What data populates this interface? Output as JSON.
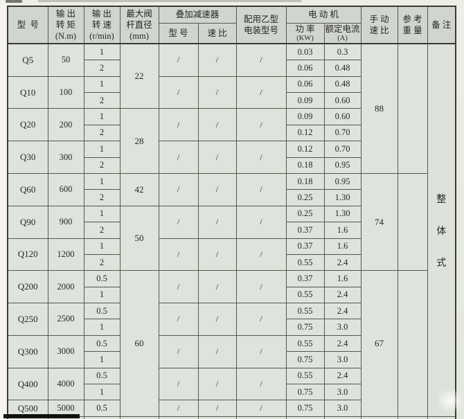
{
  "table": {
    "header": {
      "model": "型  号",
      "torque": "输 出\n转 矩\n(N.m)",
      "speed": "输 出\n转 速\n(r/min)",
      "stem_diameter": "最大阀\n杆直径\n(mm)",
      "reducer_group": "叠加减速器",
      "reducer_model": "型 号",
      "reducer_ratio": "速 比",
      "device": "配用乙型\n电装型号",
      "motor_group": "电 动 机",
      "motor_power_label": "功 率",
      "motor_power_unit": "(KW)",
      "motor_current_label": "额定电流",
      "motor_current_unit": "(A)",
      "hand_ratio": "手 动\n速 比",
      "weight": "参 考\n重 量",
      "remark": "备 注"
    },
    "models": [
      {
        "model": "Q5",
        "torque": "50",
        "reducer_model": "/",
        "reducer_ratio": "/",
        "device": "/",
        "subs": [
          {
            "speed": "1",
            "power": "0.03",
            "current": "0.3"
          },
          {
            "speed": "2",
            "power": "0.06",
            "current": "0.48"
          }
        ]
      },
      {
        "model": "Q10",
        "torque": "100",
        "reducer_model": "/",
        "reducer_ratio": "/",
        "device": "/",
        "subs": [
          {
            "speed": "1",
            "power": "0.06",
            "current": "0.48"
          },
          {
            "speed": "2",
            "power": "0.09",
            "current": "0.60"
          }
        ]
      },
      {
        "model": "Q20",
        "torque": "200",
        "reducer_model": "/",
        "reducer_ratio": "/",
        "device": "/",
        "subs": [
          {
            "speed": "1",
            "power": "0.09",
            "current": "0.60"
          },
          {
            "speed": "2",
            "power": "0.12",
            "current": "0.70"
          }
        ]
      },
      {
        "model": "Q30",
        "torque": "300",
        "reducer_model": "/",
        "reducer_ratio": "/",
        "device": "/",
        "subs": [
          {
            "speed": "1",
            "power": "0.12",
            "current": "0.70"
          },
          {
            "speed": "2",
            "power": "0.18",
            "current": "0.95"
          }
        ]
      },
      {
        "model": "Q60",
        "torque": "600",
        "reducer_model": "/",
        "reducer_ratio": "/",
        "device": "/",
        "subs": [
          {
            "speed": "1",
            "power": "0.18",
            "current": "0.95"
          },
          {
            "speed": "2",
            "power": "0.25",
            "current": "1.30"
          }
        ]
      },
      {
        "model": "Q90",
        "torque": "900",
        "reducer_model": "/",
        "reducer_ratio": "/",
        "device": "/",
        "subs": [
          {
            "speed": "1",
            "power": "0.25",
            "current": "1.30"
          },
          {
            "speed": "2",
            "power": "0.37",
            "current": "1.6"
          }
        ]
      },
      {
        "model": "Q120",
        "torque": "1200",
        "reducer_model": "/",
        "reducer_ratio": "/",
        "device": "/",
        "subs": [
          {
            "speed": "1",
            "power": "0.37",
            "current": "1.6"
          },
          {
            "speed": "2",
            "power": "0.55",
            "current": "2.4"
          }
        ]
      },
      {
        "model": "Q200",
        "torque": "2000",
        "reducer_model": "/",
        "reducer_ratio": "/",
        "device": "/",
        "subs": [
          {
            "speed": "0.5",
            "power": "0.37",
            "current": "1.6"
          },
          {
            "speed": "1",
            "power": "0.55",
            "current": "2.4"
          }
        ]
      },
      {
        "model": "Q250",
        "torque": "2500",
        "reducer_model": "/",
        "reducer_ratio": "/",
        "device": "/",
        "subs": [
          {
            "speed": "0.5",
            "power": "0.55",
            "current": "2.4"
          },
          {
            "speed": "1",
            "power": "0.75",
            "current": "3.0"
          }
        ]
      },
      {
        "model": "Q300",
        "torque": "3000",
        "reducer_model": "/",
        "reducer_ratio": "/",
        "device": "/",
        "subs": [
          {
            "speed": "0.5",
            "power": "0.55",
            "current": "2.4"
          },
          {
            "speed": "1",
            "power": "0.75",
            "current": "3.0"
          }
        ]
      },
      {
        "model": "Q400",
        "torque": "4000",
        "reducer_model": "/",
        "reducer_ratio": "/",
        "device": "/",
        "subs": [
          {
            "speed": "0.5",
            "power": "0.55",
            "current": "2.4"
          },
          {
            "speed": "1",
            "power": "0.75",
            "current": "3.0"
          }
        ]
      },
      {
        "model": "Q500",
        "torque": "5000",
        "reducer_model": "/",
        "reducer_ratio": "/",
        "device": "/",
        "subs": [
          {
            "speed": "0.5",
            "power": "0.75",
            "current": "3.0"
          }
        ]
      }
    ],
    "diameter_spans": [
      {
        "value": "22",
        "rows": 4
      },
      {
        "value": "28",
        "rows": 4
      },
      {
        "value": "42",
        "rows": 2
      },
      {
        "value": "50",
        "rows": 4
      },
      {
        "value": "60",
        "rows": 9
      }
    ],
    "hand_ratio_spans": [
      {
        "value": "88",
        "rows": 8
      },
      {
        "value": "74",
        "rows": 6
      },
      {
        "value": "67",
        "rows": 9
      }
    ],
    "weight_spans": [
      {
        "value": "",
        "rows": 8
      },
      {
        "value": "",
        "rows": 6
      },
      {
        "value": "",
        "rows": 9
      }
    ],
    "remark_chars": [
      "整",
      "体",
      "式"
    ],
    "colors": {
      "table_body_bg": "#dee3dc",
      "header_bg": "#d1d5cf",
      "grid_line": "#56564e",
      "text": "#26261f"
    }
  }
}
